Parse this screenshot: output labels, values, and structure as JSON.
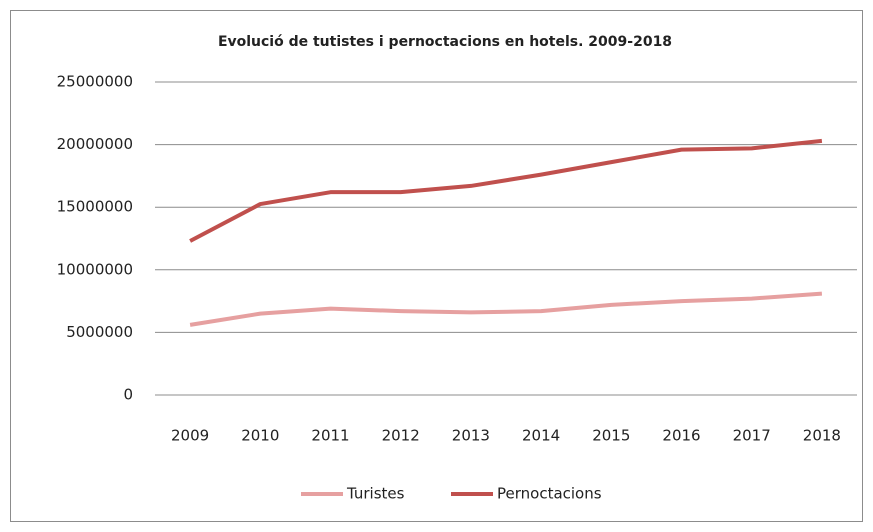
{
  "chart_data": {
    "type": "line",
    "title": "Evolució de tutistes i pernoctacions  en hotels. 2009-2018",
    "categories": [
      "2009",
      "2010",
      "2011",
      "2012",
      "2013",
      "2014",
      "2015",
      "2016",
      "2017",
      "2018"
    ],
    "series": [
      {
        "name": "Turistes",
        "color": "#e6a0a0",
        "values": [
          5600000,
          6500000,
          6900000,
          6700000,
          6600000,
          6700000,
          7200000,
          7500000,
          7700000,
          8100000
        ]
      },
      {
        "name": "Pernoctacions",
        "color": "#c0504d",
        "values": [
          12300000,
          15250000,
          16200000,
          16200000,
          16700000,
          17600000,
          18600000,
          19600000,
          19700000,
          20300000
        ]
      }
    ],
    "ylim": [
      0,
      25000000
    ],
    "yticks": [
      0,
      5000000,
      10000000,
      15000000,
      20000000,
      25000000
    ],
    "grid": true,
    "legend": "bottom"
  }
}
